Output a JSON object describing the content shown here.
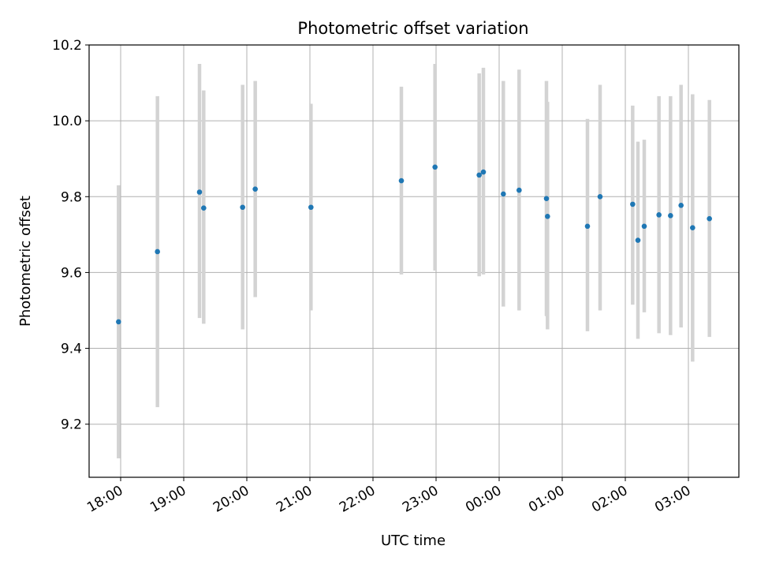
{
  "chart_data": {
    "type": "scatter",
    "title": "Photometric offset variation",
    "xlabel": "UTC time",
    "ylabel": "Photometric offset",
    "ylim": [
      9.06,
      10.2
    ],
    "xlim": [
      "17:30",
      "03:48"
    ],
    "grid": true,
    "colors": {
      "point": "#1f77b4",
      "errorbar": "#d3d3d3",
      "grid": "#b0b0b0"
    },
    "x_ticks": [
      "18:00",
      "19:00",
      "20:00",
      "21:00",
      "22:00",
      "23:00",
      "00:00",
      "01:00",
      "02:00",
      "03:00"
    ],
    "y_ticks": [
      "9.2",
      "9.4",
      "9.6",
      "9.8",
      "10.0",
      "10.2"
    ],
    "points": [
      {
        "x": "17:58",
        "y": 9.47,
        "ylow": 9.11,
        "yhigh": 9.83
      },
      {
        "x": "18:35",
        "y": 9.655,
        "ylow": 9.245,
        "yhigh": 10.065
      },
      {
        "x": "19:15",
        "y": 9.812,
        "ylow": 9.48,
        "yhigh": 10.15
      },
      {
        "x": "19:19",
        "y": 9.77,
        "ylow": 9.465,
        "yhigh": 10.08
      },
      {
        "x": "19:56",
        "y": 9.772,
        "ylow": 9.45,
        "yhigh": 10.095
      },
      {
        "x": "20:08",
        "y": 9.82,
        "ylow": 9.535,
        "yhigh": 10.105
      },
      {
        "x": "21:01",
        "y": 9.772,
        "ylow": 9.5,
        "yhigh": 10.045
      },
      {
        "x": "22:27",
        "y": 9.842,
        "ylow": 9.595,
        "yhigh": 10.09
      },
      {
        "x": "22:59",
        "y": 9.878,
        "ylow": 9.605,
        "yhigh": 10.15
      },
      {
        "x": "23:41",
        "y": 9.857,
        "ylow": 9.59,
        "yhigh": 10.125
      },
      {
        "x": "23:45",
        "y": 9.865,
        "ylow": 9.595,
        "yhigh": 10.14
      },
      {
        "x": "00:04",
        "y": 9.807,
        "ylow": 9.51,
        "yhigh": 10.105
      },
      {
        "x": "00:19",
        "y": 9.817,
        "ylow": 9.5,
        "yhigh": 10.135
      },
      {
        "x": "00:45",
        "y": 9.795,
        "ylow": 9.485,
        "yhigh": 10.105
      },
      {
        "x": "00:46",
        "y": 9.748,
        "ylow": 9.45,
        "yhigh": 10.05
      },
      {
        "x": "01:24",
        "y": 9.722,
        "ylow": 9.445,
        "yhigh": 10.005
      },
      {
        "x": "01:36",
        "y": 9.8,
        "ylow": 9.5,
        "yhigh": 10.095
      },
      {
        "x": "02:07",
        "y": 9.78,
        "ylow": 9.515,
        "yhigh": 10.04
      },
      {
        "x": "02:12",
        "y": 9.685,
        "ylow": 9.425,
        "yhigh": 9.945
      },
      {
        "x": "02:18",
        "y": 9.722,
        "ylow": 9.495,
        "yhigh": 9.95
      },
      {
        "x": "02:32",
        "y": 9.752,
        "ylow": 9.44,
        "yhigh": 10.065
      },
      {
        "x": "02:43",
        "y": 9.75,
        "ylow": 9.435,
        "yhigh": 10.065
      },
      {
        "x": "02:53",
        "y": 9.777,
        "ylow": 9.455,
        "yhigh": 10.095
      },
      {
        "x": "03:04",
        "y": 9.718,
        "ylow": 9.365,
        "yhigh": 10.07
      },
      {
        "x": "03:20",
        "y": 9.742,
        "ylow": 9.43,
        "yhigh": 10.055
      }
    ]
  }
}
